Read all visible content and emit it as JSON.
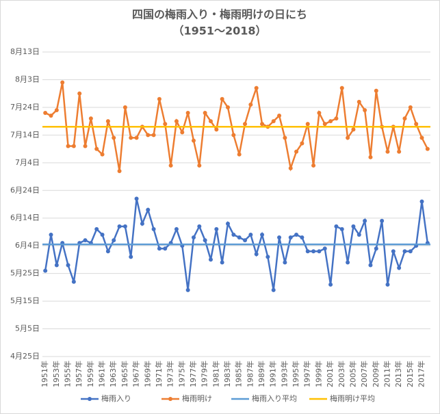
{
  "chart_data": {
    "type": "line",
    "title": "四国の梅雨入り・梅雨明けの日にち",
    "subtitle": "（1951～2018）",
    "categories": [
      "1951年",
      null,
      "1953年",
      null,
      "1955年",
      null,
      "1957年",
      null,
      "1959年",
      null,
      "1961年",
      null,
      "1963年",
      null,
      "1965年",
      null,
      "1967年",
      null,
      "1969年",
      null,
      "1971年",
      null,
      "1973年",
      null,
      "1975年",
      null,
      "1977年",
      null,
      "1979年",
      null,
      "1981年",
      null,
      "1983年",
      null,
      "1985年",
      null,
      "1987年",
      null,
      "1989年",
      null,
      "1991年",
      null,
      "1993年",
      null,
      "1995年",
      null,
      "1997年",
      null,
      "1999年",
      null,
      "2001年",
      null,
      "2003年",
      null,
      "2005年",
      null,
      "2007年",
      null,
      "2009年",
      null,
      "2011年",
      null,
      "2013年",
      null,
      "2015年",
      null,
      "2017年",
      null
    ],
    "series": [
      {
        "name": "梅雨入り",
        "color": "#4472c4",
        "values": [
          146,
          159,
          148,
          156,
          148,
          142,
          156,
          157,
          156,
          161,
          159,
          153,
          157,
          162,
          162,
          151,
          172,
          163,
          168,
          161,
          154,
          154,
          156,
          161,
          155,
          139,
          158,
          162,
          157,
          150,
          161,
          149,
          163,
          159,
          158,
          157,
          159,
          152,
          159,
          151,
          139,
          158,
          149,
          158,
          159,
          158,
          153,
          153,
          153,
          154,
          141,
          162,
          161,
          149,
          162,
          159,
          164,
          148,
          154,
          164,
          141,
          153,
          147,
          153,
          153,
          155,
          171,
          156
        ]
      },
      {
        "name": "梅雨明け",
        "color": "#ed7d31",
        "values": [
          203,
          202,
          204,
          214,
          191,
          191,
          210,
          191,
          201,
          190,
          188,
          200,
          194,
          182,
          205,
          194,
          194,
          198,
          195,
          195,
          208,
          199,
          184,
          200,
          196,
          203,
          193,
          184,
          203,
          200,
          197,
          208,
          205,
          195,
          188,
          199,
          206,
          212,
          199,
          198,
          200,
          202,
          194,
          183,
          189,
          192,
          199,
          184,
          203,
          199,
          200,
          201,
          212,
          194,
          197,
          207,
          204,
          187,
          211,
          198,
          189,
          198,
          189,
          201,
          205,
          199,
          194,
          190
        ]
      },
      {
        "name": "梅雨入り平均",
        "color": "#5b9bd5",
        "value": 155.5
      },
      {
        "name": "梅雨明け平均",
        "color": "#ffc000",
        "value": 198
      }
    ],
    "ylim": [
      115,
      225
    ],
    "yticks": [
      {
        "value": 115,
        "label": "4月25日"
      },
      {
        "value": 125,
        "label": "5月5日"
      },
      {
        "value": 135,
        "label": "5月15日"
      },
      {
        "value": 145,
        "label": "5月25日"
      },
      {
        "value": 155,
        "label": "6月4日"
      },
      {
        "value": 165,
        "label": "6月14日"
      },
      {
        "value": 175,
        "label": "6月24日"
      },
      {
        "value": 185,
        "label": "7月4日"
      },
      {
        "value": 195,
        "label": "7月14日"
      },
      {
        "value": 205,
        "label": "7月24日"
      },
      {
        "value": 215,
        "label": "8月3日"
      },
      {
        "value": 225,
        "label": "8月13日"
      }
    ],
    "grid": true,
    "legend": "bottom"
  }
}
